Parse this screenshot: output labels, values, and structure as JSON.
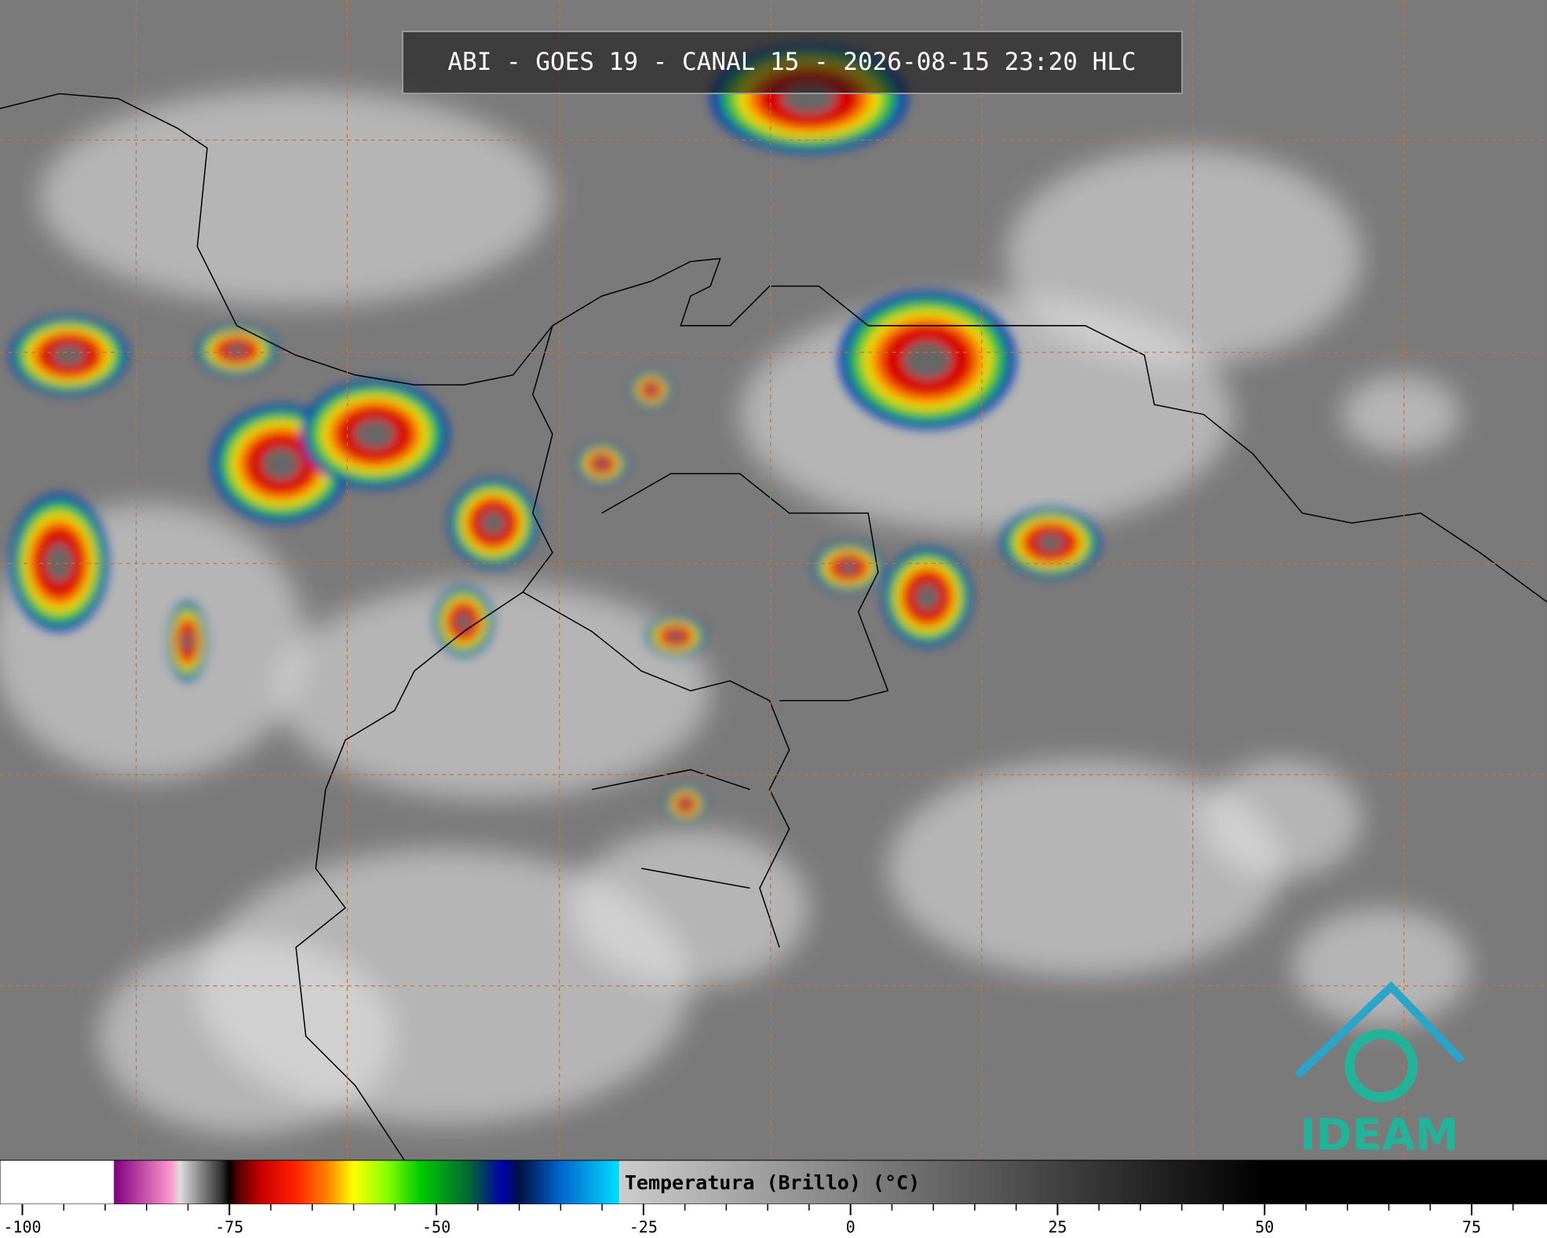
{
  "header": {
    "title": "ABI - GOES 19 - CANAL 15 - 2026-08-15 23:20 HLC"
  },
  "colorbar": {
    "label": "Temperatura (Brillo) (°C)",
    "xlim": [
      -102.7,
      84.1
    ],
    "xticks": [
      -100,
      -75,
      -50,
      -25,
      0,
      25,
      50,
      75
    ],
    "minor_xticks": [
      -95,
      -90,
      -85,
      -80,
      -70,
      -65,
      -60,
      -55,
      -45,
      -40,
      -35,
      -30,
      -20,
      -15,
      -10,
      -5,
      5,
      10,
      15,
      20,
      30,
      35,
      40,
      45,
      55,
      60,
      65,
      70,
      80
    ],
    "stops": [
      {
        "value": -89,
        "color": "#ffffff"
      },
      {
        "value": -88.9,
        "color": "#800080"
      },
      {
        "value": -82,
        "color": "#ff99cc"
      },
      {
        "value": -81,
        "color": "#dddddd"
      },
      {
        "value": -76,
        "color": "#333333"
      },
      {
        "value": -75,
        "color": "#000000"
      },
      {
        "value": -74,
        "color": "#550000"
      },
      {
        "value": -71,
        "color": "#cc0000"
      },
      {
        "value": -67,
        "color": "#ff2200"
      },
      {
        "value": -63,
        "color": "#ff8800"
      },
      {
        "value": -60,
        "color": "#ffff00"
      },
      {
        "value": -56,
        "color": "#88ff00"
      },
      {
        "value": -52,
        "color": "#00cc00"
      },
      {
        "value": -46,
        "color": "#006633"
      },
      {
        "value": -42,
        "color": "#0000aa"
      },
      {
        "value": -40,
        "color": "#001144"
      },
      {
        "value": -35,
        "color": "#0066cc"
      },
      {
        "value": -28,
        "color": "#00ddff"
      },
      {
        "value": -27.9,
        "color": "#cccccc"
      },
      {
        "value": 50,
        "color": "#000000"
      }
    ]
  },
  "logo": {
    "text": "IDEAM"
  }
}
